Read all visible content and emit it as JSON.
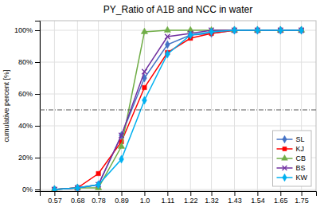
{
  "chart_data": {
    "type": "line",
    "title": "PY_Ratio of A1B and NCC in water",
    "ylabel": "cumulative percent [%]",
    "x": [
      0.57,
      0.68,
      0.78,
      0.89,
      1,
      1.11,
      1.22,
      1.32,
      1.43,
      1.54,
      1.65,
      1.75
    ],
    "series": [
      {
        "name": "SL",
        "color": "#4472C4",
        "marker": "diamond",
        "values": [
          0,
          0.01,
          0.03,
          0.34,
          0.7,
          0.91,
          0.97,
          0.98,
          1,
          1,
          1,
          1
        ]
      },
      {
        "name": "KJ",
        "color": "#FF0000",
        "marker": "square",
        "values": [
          0,
          0.01,
          0.1,
          0.3,
          0.64,
          0.86,
          0.95,
          0.98,
          1,
          1,
          1,
          1
        ]
      },
      {
        "name": "CB",
        "color": "#70AD47",
        "marker": "triangle",
        "values": [
          0,
          0.01,
          0.01,
          0.27,
          0.99,
          1,
          1,
          1,
          1,
          1,
          1,
          1
        ]
      },
      {
        "name": "BS",
        "color": "#7030A0",
        "marker": "x",
        "values": [
          0,
          0.01,
          0.03,
          0.34,
          0.74,
          0.96,
          0.98,
          1,
          1,
          1,
          1,
          1
        ]
      },
      {
        "name": "KW",
        "color": "#00B0F0",
        "marker": "diamond",
        "values": [
          0,
          0.01,
          0.03,
          0.19,
          0.56,
          0.85,
          0.97,
          0.99,
          1,
          1,
          1,
          1
        ]
      }
    ],
    "hline": 0.5,
    "xlim": [
      0.5,
      1.82
    ],
    "ylim": [
      -0.01,
      1.06
    ],
    "xticks": [
      0.57,
      0.68,
      0.78,
      0.89,
      {
        "value": 1,
        "label": "1.0"
      },
      1.11,
      1.22,
      1.32,
      1.43,
      1.54,
      1.65,
      1.75
    ],
    "yticks": [
      {
        "value": 0,
        "label": "0%"
      },
      {
        "value": 0.2,
        "label": "20%"
      },
      {
        "value": 0.4,
        "label": "40%"
      },
      {
        "value": 0.6,
        "label": "60%"
      },
      {
        "value": 0.8,
        "label": "80%"
      },
      {
        "value": 1,
        "label": "100%"
      }
    ],
    "grid": true,
    "legend": "lower right"
  }
}
